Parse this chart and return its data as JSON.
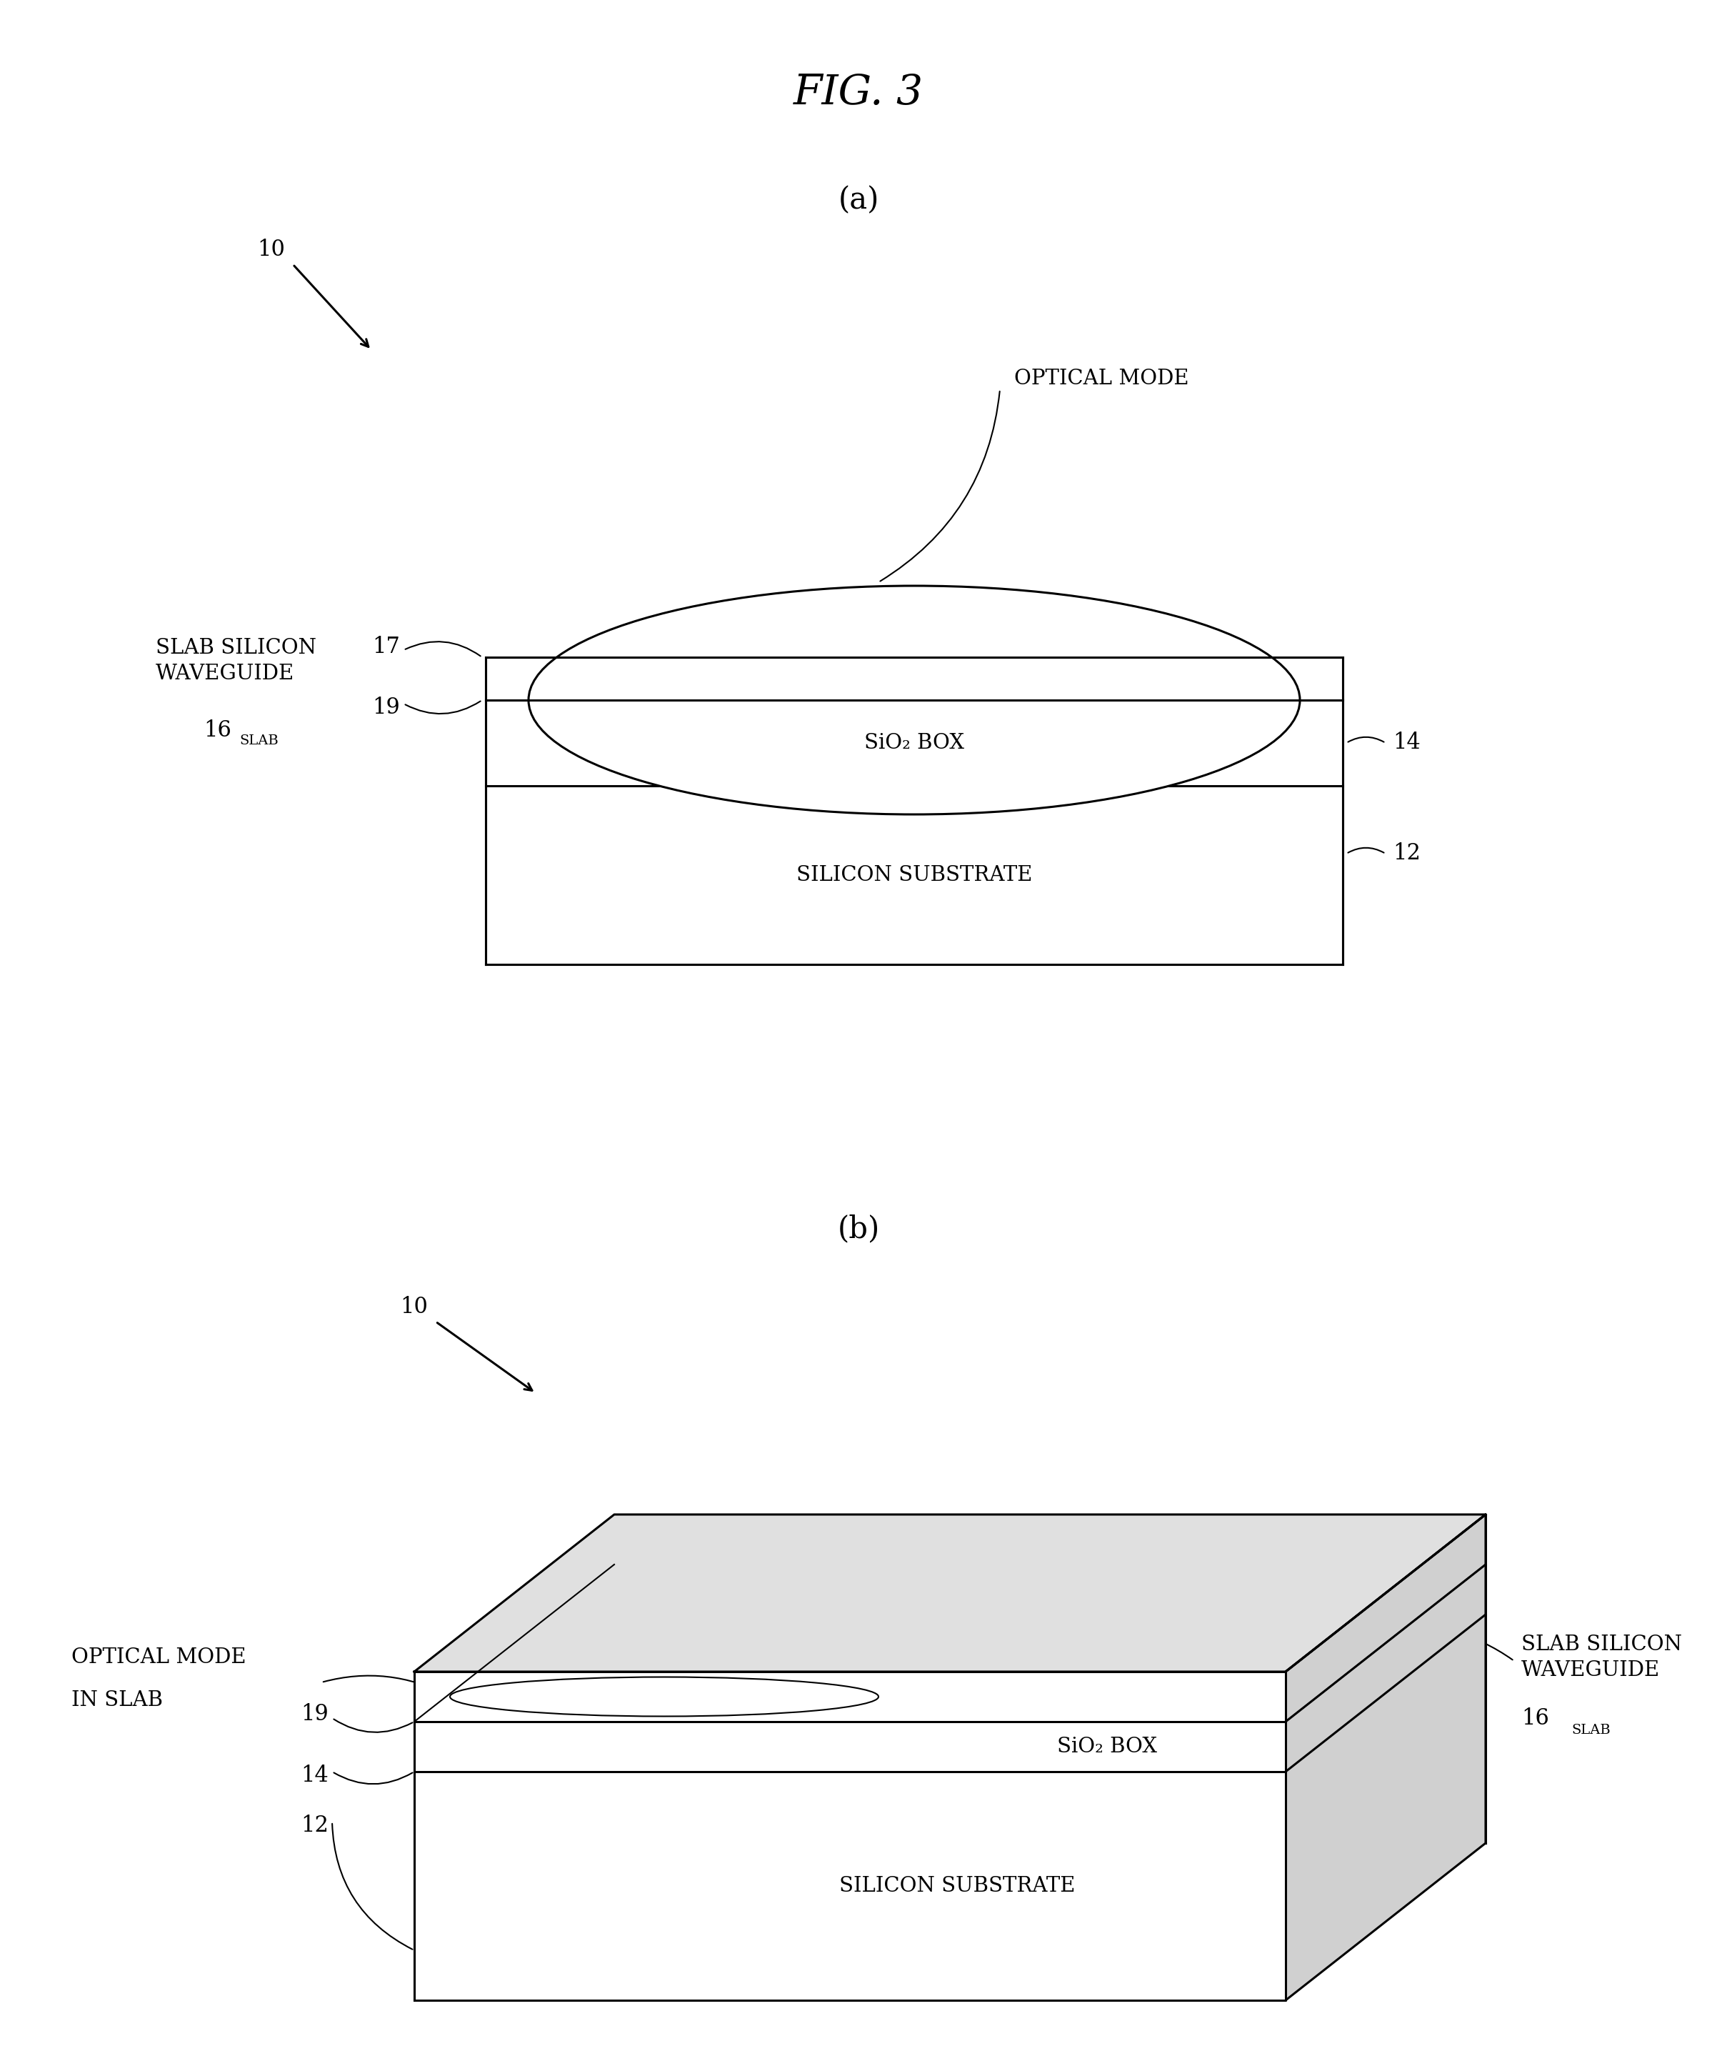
{
  "title": "FIG. 3",
  "bg_color": "#ffffff",
  "line_color": "#000000",
  "label_a": "(a)",
  "label_b": "(b)",
  "ref_10": "10",
  "ref_12": "12",
  "ref_14": "14",
  "ref_17": "17",
  "ref_19": "19",
  "optical_mode_label": "OPTICAL MODE",
  "sio2_label": "SiO₂ BOX",
  "silicon_label": "SILICON SUBSTRATE",
  "slab_silicon_waveguide": "SLAB SILICON\nWAVEGUIDE",
  "label_16": "16",
  "label_slab_sub": "SLAB",
  "optical_mode_slab_label_1": "OPTICAL MODE",
  "optical_mode_slab_label_2": "IN SLAB",
  "sio2_label_b": "SiO₂ BOX",
  "silicon_label_b": "SILICON SUBSTRATE",
  "slab_silicon_waveguide_b": "SLAB SILICON\nWAVEGUIDE",
  "label_16_b": "16",
  "label_slab_sub_b": "SLAB"
}
